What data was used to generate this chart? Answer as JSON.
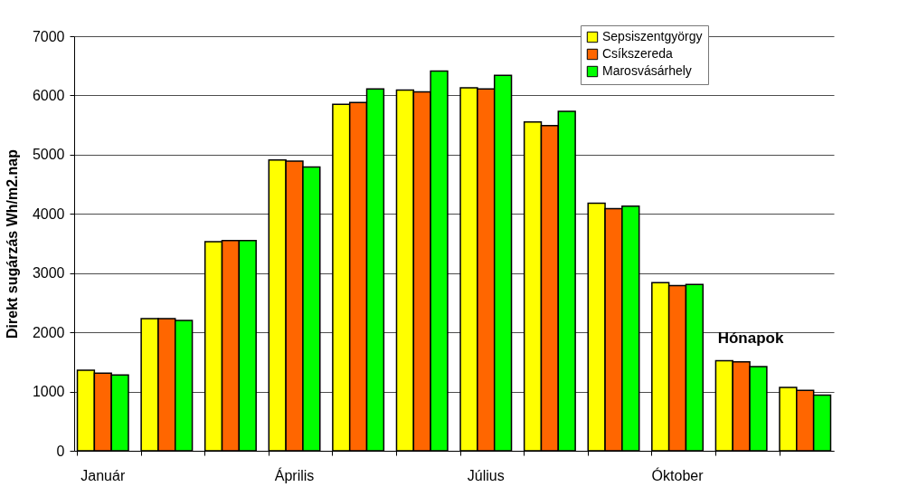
{
  "chart_data": {
    "type": "bar",
    "ylabel": "Direkt sugárzás Wh/m2.nap",
    "xlabel": "Hónapok",
    "categories": [
      "Január",
      null,
      null,
      "Április",
      null,
      null,
      "Július",
      null,
      null,
      "Óktober",
      null,
      null
    ],
    "series": [
      {
        "name": "Sepsiszentgyörgy",
        "color": "#ffff00",
        "values": [
          1360,
          2230,
          3530,
          4910,
          5850,
          6090,
          6130,
          5550,
          4180,
          2840,
          1520,
          1070
        ]
      },
      {
        "name": "Csíkszereda",
        "color": "#ff6600",
        "values": [
          1310,
          2230,
          3550,
          4890,
          5880,
          6060,
          6110,
          5490,
          4090,
          2790,
          1500,
          1020
        ]
      },
      {
        "name": "Marosvásárhely",
        "color": "#00ff00",
        "values": [
          1280,
          2200,
          3550,
          4790,
          6110,
          6410,
          6340,
          5730,
          4130,
          2810,
          1420,
          940
        ]
      }
    ],
    "ylim": [
      0,
      7000
    ],
    "yticks": [
      0,
      1000,
      2000,
      3000,
      4000,
      5000,
      6000,
      7000
    ],
    "grid": "y",
    "legend": "top right"
  }
}
